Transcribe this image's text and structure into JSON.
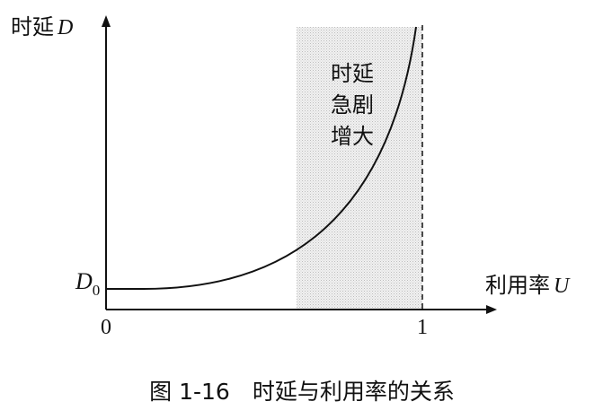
{
  "y_axis": {
    "label": "时延",
    "symbol": "D"
  },
  "baseline": {
    "symbol": "D",
    "subscript": "0"
  },
  "x_axis": {
    "label": "利用率",
    "symbol": "U"
  },
  "x_ticks": [
    0,
    1
  ],
  "annotation": [
    "时延",
    "急剧",
    "增大"
  ],
  "caption": "图 1-16　时延与利用率的关系"
}
